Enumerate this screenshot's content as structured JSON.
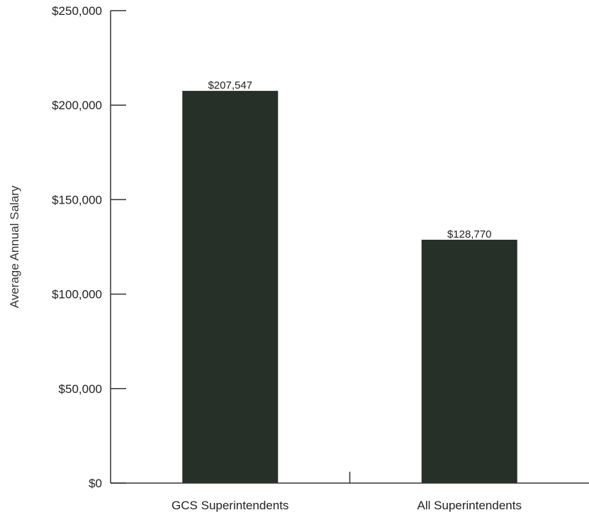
{
  "chart_data": {
    "type": "bar",
    "categories": [
      "GCS Superintendents",
      "All Superintendents"
    ],
    "values": [
      207547,
      128770
    ],
    "data_labels": [
      "$207,547",
      "$128,770"
    ],
    "title": "",
    "xlabel": "",
    "ylabel": "Average Annual Salary",
    "ylim": [
      0,
      250000
    ],
    "y_ticks": [
      0,
      50000,
      100000,
      150000,
      200000,
      250000
    ],
    "y_tick_labels": [
      "$0",
      "$50,000",
      "$100,000",
      "$150,000",
      "$200,000",
      "$250,000"
    ],
    "grid": false,
    "legend": "none",
    "bar_color": "#263028"
  }
}
